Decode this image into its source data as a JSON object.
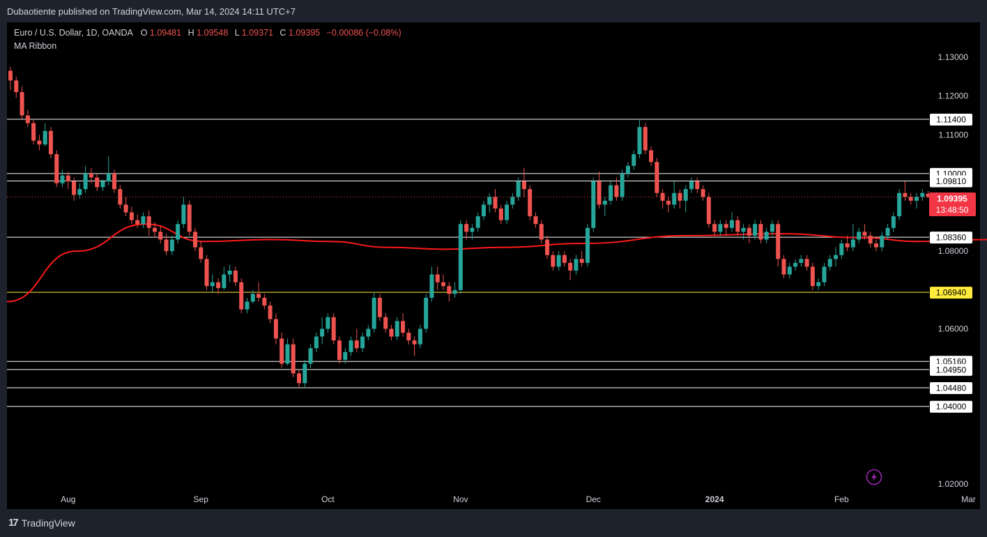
{
  "header": {
    "publisher": "Dubaotiente published on TradingView.com, Mar 14, 2024 14:11 UTC+7"
  },
  "legend": {
    "symbol": "Euro / U.S. Dollar, 1D, OANDA",
    "o_label": "O",
    "o_value": "1.09481",
    "h_label": "H",
    "h_value": "1.09548",
    "l_label": "L",
    "l_value": "1.09371",
    "c_label": "C",
    "c_value": "1.09395",
    "change": "−0.00086 (−0.08%)",
    "indicator": "MA Ribbon"
  },
  "price_badge": {
    "price": "1.09395",
    "countdown": "13:48:50"
  },
  "footer": {
    "brand": "TradingView",
    "logo_icon": "tradingview-logo-icon"
  },
  "colors": {
    "background": "#000000",
    "up": "#26a69a",
    "down": "#ef5350",
    "ma": "#ff1a1a",
    "white_level": "#ffffff",
    "yellow_level": "#ffeb3b",
    "badge": "#f23645",
    "icon_purple": "#9c27b0"
  },
  "chart_data": {
    "type": "candlestick",
    "instrument": "Euro / U.S. Dollar",
    "timeframe": "1D",
    "yaxis": {
      "ticks": [
        1.02,
        1.03,
        1.04,
        1.05,
        1.06,
        1.07,
        1.08,
        1.09,
        1.1,
        1.11,
        1.12,
        1.13
      ],
      "tick_labels": [
        "1.02000",
        "",
        "1.04000",
        "",
        "1.06000",
        "",
        "1.08000",
        "",
        "",
        "1.11000",
        "1.12000",
        "1.13000"
      ]
    },
    "xaxis": {
      "labels": [
        "Aug",
        "Sep",
        "Oct",
        "Nov",
        "Dec",
        "2024",
        "Feb",
        "Mar"
      ],
      "label_bars": [
        10,
        33,
        55,
        78,
        101,
        122,
        144,
        166
      ]
    },
    "levels": [
      {
        "value": 1.114,
        "label": "1.11400",
        "color": "white"
      },
      {
        "value": 1.1,
        "label": "1.10000",
        "color": "white"
      },
      {
        "value": 1.0981,
        "label": "1.09810",
        "color": "white"
      },
      {
        "value": 1.0836,
        "label": "1.08360",
        "color": "white"
      },
      {
        "value": 1.0694,
        "label": "1.06940",
        "color": "yellow"
      },
      {
        "value": 1.0516,
        "label": "1.05160",
        "color": "white"
      },
      {
        "value": 1.0495,
        "label": "1.04950",
        "color": "white"
      },
      {
        "value": 1.0448,
        "label": "1.04480",
        "color": "white"
      },
      {
        "value": 1.04,
        "label": "1.04000",
        "color": "white"
      }
    ],
    "last_price": 1.09395,
    "ma_anchors": [
      [
        0,
        1.067
      ],
      [
        12,
        1.08
      ],
      [
        24,
        1.087
      ],
      [
        34,
        1.0825
      ],
      [
        46,
        1.083
      ],
      [
        56,
        1.0825
      ],
      [
        66,
        1.081
      ],
      [
        76,
        1.0805
      ],
      [
        86,
        1.081
      ],
      [
        100,
        1.082
      ],
      [
        118,
        1.084
      ],
      [
        134,
        1.0845
      ],
      [
        148,
        1.0835
      ],
      [
        158,
        1.0825
      ],
      [
        170,
        1.083
      ],
      [
        178,
        1.0835
      ]
    ],
    "candles": [
      [
        1.1265,
        1.1275,
        1.1215,
        1.124
      ],
      [
        1.124,
        1.125,
        1.1195,
        1.121
      ],
      [
        1.121,
        1.1225,
        1.114,
        1.115
      ],
      [
        1.115,
        1.1165,
        1.112,
        1.113
      ],
      [
        1.113,
        1.114,
        1.1075,
        1.1085
      ],
      [
        1.1085,
        1.11,
        1.106,
        1.1075
      ],
      [
        1.1075,
        1.113,
        1.107,
        1.111
      ],
      [
        1.111,
        1.112,
        1.104,
        1.105
      ],
      [
        1.105,
        1.106,
        1.0965,
        1.0975
      ],
      [
        1.0975,
        1.101,
        1.0965,
        1.0995
      ],
      [
        1.0995,
        1.1005,
        1.096,
        1.098
      ],
      [
        1.098,
        1.099,
        1.093,
        1.0945
      ],
      [
        1.0945,
        1.0975,
        1.0935,
        1.096
      ],
      [
        1.096,
        1.102,
        1.095,
        1.1
      ],
      [
        1.1,
        1.1015,
        1.0975,
        1.099
      ],
      [
        1.099,
        1.1,
        1.0955,
        1.0965
      ],
      [
        1.0965,
        1.0985,
        1.0955,
        1.098
      ],
      [
        1.098,
        1.1045,
        1.097,
        1.1
      ],
      [
        1.1,
        1.101,
        1.095,
        1.096
      ],
      [
        1.096,
        1.097,
        1.091,
        1.092
      ],
      [
        1.092,
        1.094,
        1.089,
        1.09
      ],
      [
        1.09,
        1.0915,
        1.087,
        1.088
      ],
      [
        1.088,
        1.0895,
        1.086,
        1.087
      ],
      [
        1.087,
        1.09,
        1.086,
        1.089
      ],
      [
        1.089,
        1.0905,
        1.084,
        1.086
      ],
      [
        1.086,
        1.0875,
        1.0835,
        1.085
      ],
      [
        1.085,
        1.0865,
        1.082,
        1.083
      ],
      [
        1.083,
        1.0845,
        1.079,
        1.08
      ],
      [
        1.08,
        1.084,
        1.079,
        1.083
      ],
      [
        1.083,
        1.088,
        1.082,
        1.087
      ],
      [
        1.087,
        1.094,
        1.086,
        1.092
      ],
      [
        1.092,
        1.093,
        1.084,
        1.085
      ],
      [
        1.085,
        1.086,
        1.08,
        1.081
      ],
      [
        1.081,
        1.0825,
        1.077,
        1.078
      ],
      [
        1.078,
        1.079,
        1.07,
        1.071
      ],
      [
        1.071,
        1.074,
        1.0695,
        1.072
      ],
      [
        1.072,
        1.073,
        1.069,
        1.0705
      ],
      [
        1.0705,
        1.076,
        1.07,
        1.074
      ],
      [
        1.074,
        1.0765,
        1.072,
        1.075
      ],
      [
        1.075,
        1.076,
        1.071,
        1.072
      ],
      [
        1.072,
        1.073,
        1.064,
        1.065
      ],
      [
        1.065,
        1.068,
        1.064,
        1.067
      ],
      [
        1.067,
        1.07,
        1.0665,
        1.069
      ],
      [
        1.069,
        1.072,
        1.067,
        1.068
      ],
      [
        1.068,
        1.069,
        1.065,
        1.066
      ],
      [
        1.066,
        1.067,
        1.0615,
        1.0625
      ],
      [
        1.0625,
        1.064,
        1.056,
        1.0575
      ],
      [
        1.0575,
        1.059,
        1.05,
        1.051
      ],
      [
        1.051,
        1.0575,
        1.0505,
        1.056
      ],
      [
        1.056,
        1.0575,
        1.0475,
        1.0485
      ],
      [
        1.0485,
        1.0495,
        1.045,
        1.046
      ],
      [
        1.046,
        1.052,
        1.045,
        1.051
      ],
      [
        1.051,
        1.056,
        1.05,
        1.055
      ],
      [
        1.055,
        1.059,
        1.054,
        1.058
      ],
      [
        1.058,
        1.063,
        1.056,
        1.06
      ],
      [
        1.06,
        1.064,
        1.059,
        1.063
      ],
      [
        1.063,
        1.064,
        1.056,
        1.057
      ],
      [
        1.057,
        1.058,
        1.051,
        1.052
      ],
      [
        1.052,
        1.055,
        1.051,
        1.054
      ],
      [
        1.054,
        1.058,
        1.053,
        1.057
      ],
      [
        1.057,
        1.06,
        1.054,
        1.055
      ],
      [
        1.055,
        1.059,
        1.054,
        1.058
      ],
      [
        1.058,
        1.061,
        1.057,
        1.06
      ],
      [
        1.06,
        1.0695,
        1.059,
        1.068
      ],
      [
        1.068,
        1.069,
        1.062,
        1.063
      ],
      [
        1.063,
        1.064,
        1.059,
        1.06
      ],
      [
        1.06,
        1.061,
        1.057,
        1.058
      ],
      [
        1.058,
        1.063,
        1.057,
        1.062
      ],
      [
        1.062,
        1.064,
        1.058,
        1.059
      ],
      [
        1.059,
        1.06,
        1.056,
        1.057
      ],
      [
        1.057,
        1.058,
        1.053,
        1.056
      ],
      [
        1.056,
        1.061,
        1.055,
        1.06
      ],
      [
        1.06,
        1.069,
        1.059,
        1.068
      ],
      [
        1.068,
        1.076,
        1.067,
        1.074
      ],
      [
        1.074,
        1.076,
        1.07,
        1.072
      ],
      [
        1.072,
        1.074,
        1.07,
        1.071
      ],
      [
        1.071,
        1.072,
        1.067,
        1.069
      ],
      [
        1.069,
        1.072,
        1.068,
        1.07
      ],
      [
        1.07,
        1.088,
        1.069,
        1.087
      ],
      [
        1.087,
        1.088,
        1.083,
        1.085
      ],
      [
        1.085,
        1.087,
        1.083,
        1.086
      ],
      [
        1.086,
        1.09,
        1.085,
        1.089
      ],
      [
        1.089,
        1.093,
        1.088,
        1.092
      ],
      [
        1.092,
        1.095,
        1.09,
        1.094
      ],
      [
        1.094,
        1.096,
        1.09,
        1.091
      ],
      [
        1.091,
        1.092,
        1.087,
        1.088
      ],
      [
        1.088,
        1.093,
        1.087,
        1.092
      ],
      [
        1.092,
        1.095,
        1.091,
        1.094
      ],
      [
        1.094,
        1.099,
        1.093,
        1.098
      ],
      [
        1.098,
        1.1015,
        1.094,
        1.096
      ],
      [
        1.096,
        1.097,
        1.088,
        1.089
      ],
      [
        1.089,
        1.09,
        1.086,
        1.087
      ],
      [
        1.087,
        1.088,
        1.082,
        1.083
      ],
      [
        1.083,
        1.084,
        1.078,
        1.079
      ],
      [
        1.079,
        1.08,
        1.075,
        1.076
      ],
      [
        1.076,
        1.08,
        1.075,
        1.079
      ],
      [
        1.079,
        1.08,
        1.076,
        1.077
      ],
      [
        1.077,
        1.078,
        1.0725,
        1.075
      ],
      [
        1.075,
        1.079,
        1.074,
        1.078
      ],
      [
        1.078,
        1.08,
        1.076,
        1.077
      ],
      [
        1.077,
        1.087,
        1.076,
        1.086
      ],
      [
        1.086,
        1.099,
        1.085,
        1.098
      ],
      [
        1.098,
        1.1005,
        1.091,
        1.092
      ],
      [
        1.092,
        1.094,
        1.089,
        1.093
      ],
      [
        1.093,
        1.098,
        1.092,
        1.097
      ],
      [
        1.097,
        1.099,
        1.093,
        1.094
      ],
      [
        1.094,
        1.101,
        1.093,
        1.1
      ],
      [
        1.1,
        1.103,
        1.099,
        1.102
      ],
      [
        1.102,
        1.106,
        1.101,
        1.105
      ],
      [
        1.105,
        1.114,
        1.104,
        1.112
      ],
      [
        1.112,
        1.113,
        1.105,
        1.106
      ],
      [
        1.106,
        1.107,
        1.102,
        1.103
      ],
      [
        1.103,
        1.104,
        1.094,
        1.095
      ],
      [
        1.095,
        1.096,
        1.091,
        1.093
      ],
      [
        1.093,
        1.094,
        1.09,
        1.092
      ],
      [
        1.092,
        1.098,
        1.091,
        1.095
      ],
      [
        1.095,
        1.096,
        1.091,
        1.093
      ],
      [
        1.093,
        1.097,
        1.09,
        1.096
      ],
      [
        1.096,
        1.099,
        1.095,
        1.098
      ],
      [
        1.098,
        1.099,
        1.095,
        1.096
      ],
      [
        1.096,
        1.097,
        1.093,
        1.094
      ],
      [
        1.094,
        1.095,
        1.086,
        1.087
      ],
      [
        1.087,
        1.088,
        1.084,
        1.085
      ],
      [
        1.085,
        1.088,
        1.084,
        1.087
      ],
      [
        1.087,
        1.088,
        1.084,
        1.086
      ],
      [
        1.086,
        1.09,
        1.085,
        1.088
      ],
      [
        1.088,
        1.089,
        1.084,
        1.085
      ],
      [
        1.085,
        1.087,
        1.083,
        1.086
      ],
      [
        1.086,
        1.087,
        1.082,
        1.084
      ],
      [
        1.084,
        1.088,
        1.083,
        1.087
      ],
      [
        1.087,
        1.088,
        1.082,
        1.083
      ],
      [
        1.083,
        1.086,
        1.082,
        1.085
      ],
      [
        1.085,
        1.088,
        1.084,
        1.087
      ],
      [
        1.087,
        1.088,
        1.076,
        1.078
      ],
      [
        1.078,
        1.079,
        1.073,
        1.074
      ],
      [
        1.074,
        1.077,
        1.073,
        1.076
      ],
      [
        1.076,
        1.078,
        1.075,
        1.077
      ],
      [
        1.077,
        1.079,
        1.076,
        1.078
      ],
      [
        1.078,
        1.079,
        1.075,
        1.076
      ],
      [
        1.076,
        1.077,
        1.07,
        1.071
      ],
      [
        1.071,
        1.073,
        1.07,
        1.072
      ],
      [
        1.072,
        1.077,
        1.071,
        1.076
      ],
      [
        1.076,
        1.079,
        1.075,
        1.078
      ],
      [
        1.078,
        1.081,
        1.076,
        1.079
      ],
      [
        1.079,
        1.083,
        1.078,
        1.082
      ],
      [
        1.082,
        1.084,
        1.08,
        1.081
      ],
      [
        1.081,
        1.087,
        1.08,
        1.083
      ],
      [
        1.083,
        1.086,
        1.082,
        1.085
      ],
      [
        1.085,
        1.087,
        1.083,
        1.084
      ],
      [
        1.084,
        1.085,
        1.081,
        1.082
      ],
      [
        1.082,
        1.083,
        1.08,
        1.081
      ],
      [
        1.081,
        1.085,
        1.08,
        1.084
      ],
      [
        1.084,
        1.087,
        1.083,
        1.086
      ],
      [
        1.086,
        1.09,
        1.085,
        1.089
      ],
      [
        1.089,
        1.096,
        1.088,
        1.095
      ],
      [
        1.095,
        1.098,
        1.093,
        1.094
      ],
      [
        1.094,
        1.095,
        1.092,
        1.093
      ],
      [
        1.093,
        1.095,
        1.091,
        1.094
      ],
      [
        1.094,
        1.096,
        1.093,
        1.095
      ],
      [
        1.0948,
        1.0955,
        1.0937,
        1.094
      ]
    ]
  }
}
